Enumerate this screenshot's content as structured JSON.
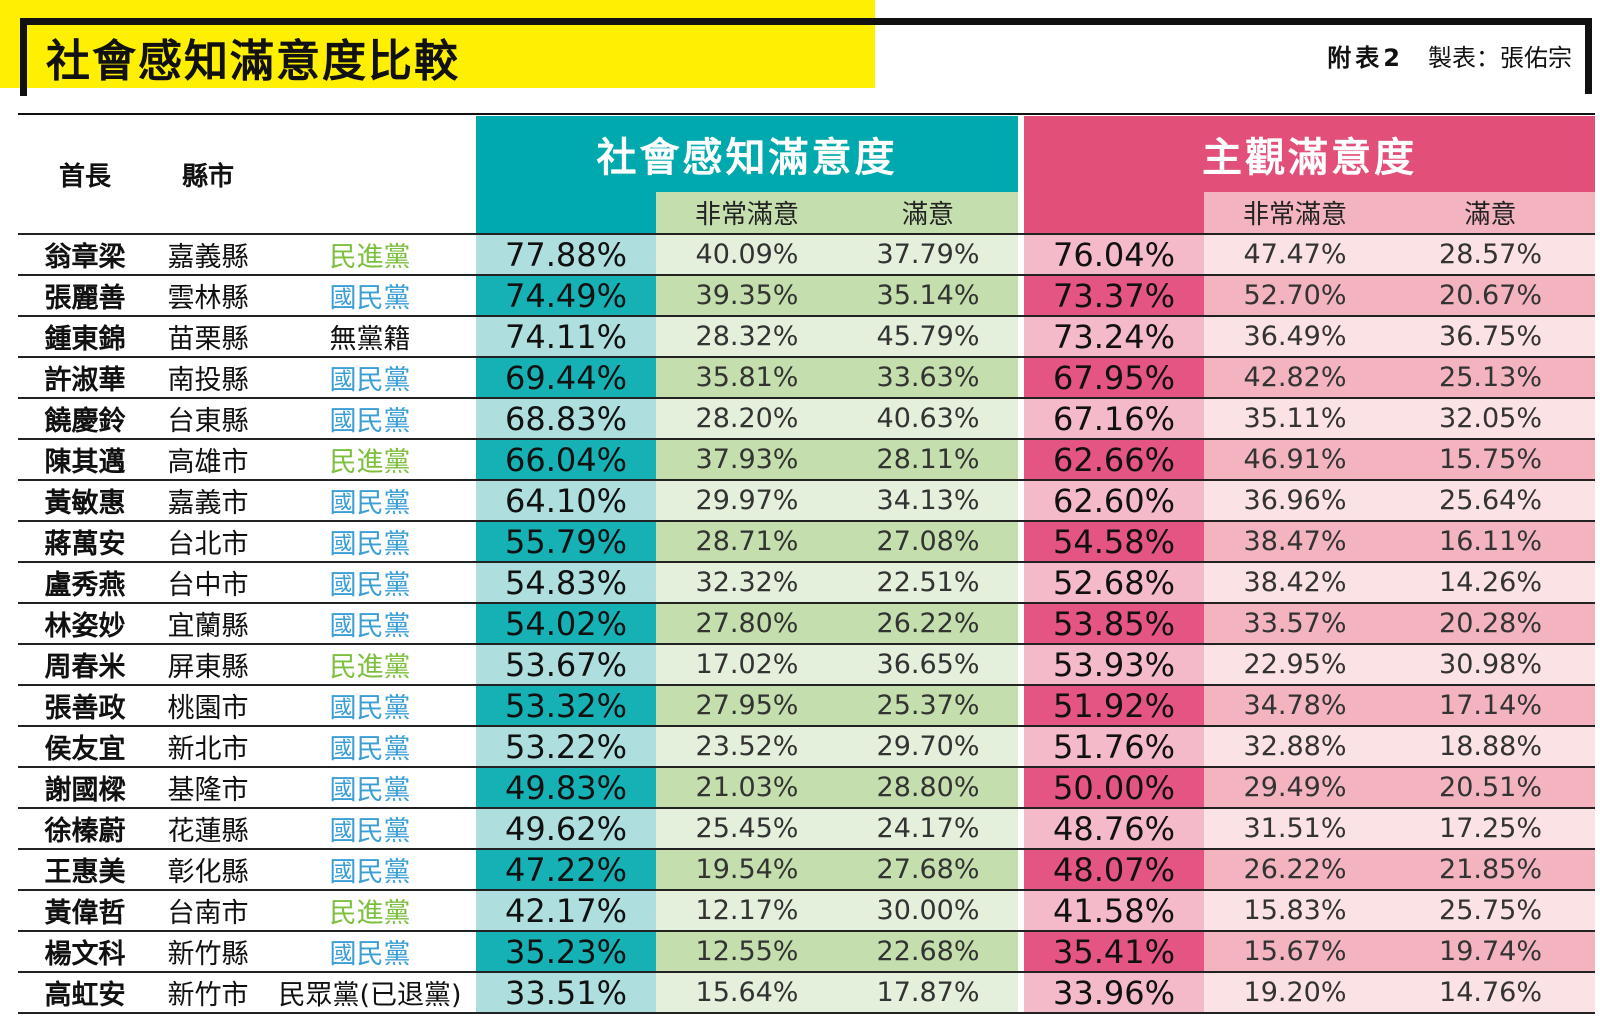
{
  "header": {
    "title": "社會感知滿意度比較",
    "figure_label": "附表2",
    "credit": "製表：張佑宗"
  },
  "columns": {
    "leader": "首長",
    "county": "縣市",
    "social_group": "社會感知滿意度",
    "subjective_group": "主觀滿意度",
    "very_satisfied": "非常滿意",
    "satisfied": "滿意"
  },
  "colors": {
    "yellow": "#ffef00",
    "teal": "#00a9ad",
    "pink": "#e2507a",
    "dpp_green": "#7dbf3e",
    "kmt_blue": "#3b9fd6"
  },
  "rows": [
    {
      "name": "翁章梁",
      "county": "嘉義縣",
      "party": "民進黨",
      "party_type": "dpp",
      "social_total": "77.88%",
      "social_very": "40.09%",
      "social_sat": "37.79%",
      "subj_total": "76.04%",
      "subj_very": "47.47%",
      "subj_sat": "28.57%"
    },
    {
      "name": "張麗善",
      "county": "雲林縣",
      "party": "國民黨",
      "party_type": "kmt",
      "social_total": "74.49%",
      "social_very": "39.35%",
      "social_sat": "35.14%",
      "subj_total": "73.37%",
      "subj_very": "52.70%",
      "subj_sat": "20.67%"
    },
    {
      "name": "鍾東錦",
      "county": "苗栗縣",
      "party": "無黨籍",
      "party_type": "ind",
      "social_total": "74.11%",
      "social_very": "28.32%",
      "social_sat": "45.79%",
      "subj_total": "73.24%",
      "subj_very": "36.49%",
      "subj_sat": "36.75%"
    },
    {
      "name": "許淑華",
      "county": "南投縣",
      "party": "國民黨",
      "party_type": "kmt",
      "social_total": "69.44%",
      "social_very": "35.81%",
      "social_sat": "33.63%",
      "subj_total": "67.95%",
      "subj_very": "42.82%",
      "subj_sat": "25.13%"
    },
    {
      "name": "饒慶鈴",
      "county": "台東縣",
      "party": "國民黨",
      "party_type": "kmt",
      "social_total": "68.83%",
      "social_very": "28.20%",
      "social_sat": "40.63%",
      "subj_total": "67.16%",
      "subj_very": "35.11%",
      "subj_sat": "32.05%"
    },
    {
      "name": "陳其邁",
      "county": "高雄市",
      "party": "民進黨",
      "party_type": "dpp",
      "social_total": "66.04%",
      "social_very": "37.93%",
      "social_sat": "28.11%",
      "subj_total": "62.66%",
      "subj_very": "46.91%",
      "subj_sat": "15.75%"
    },
    {
      "name": "黃敏惠",
      "county": "嘉義市",
      "party": "國民黨",
      "party_type": "kmt",
      "social_total": "64.10%",
      "social_very": "29.97%",
      "social_sat": "34.13%",
      "subj_total": "62.60%",
      "subj_very": "36.96%",
      "subj_sat": "25.64%"
    },
    {
      "name": "蔣萬安",
      "county": "台北市",
      "party": "國民黨",
      "party_type": "kmt",
      "social_total": "55.79%",
      "social_very": "28.71%",
      "social_sat": "27.08%",
      "subj_total": "54.58%",
      "subj_very": "38.47%",
      "subj_sat": "16.11%"
    },
    {
      "name": "盧秀燕",
      "county": "台中市",
      "party": "國民黨",
      "party_type": "kmt",
      "social_total": "54.83%",
      "social_very": "32.32%",
      "social_sat": "22.51%",
      "subj_total": "52.68%",
      "subj_very": "38.42%",
      "subj_sat": "14.26%"
    },
    {
      "name": "林姿妙",
      "county": "宜蘭縣",
      "party": "國民黨",
      "party_type": "kmt",
      "social_total": "54.02%",
      "social_very": "27.80%",
      "social_sat": "26.22%",
      "subj_total": "53.85%",
      "subj_very": "33.57%",
      "subj_sat": "20.28%"
    },
    {
      "name": "周春米",
      "county": "屏東縣",
      "party": "民進黨",
      "party_type": "dpp",
      "social_total": "53.67%",
      "social_very": "17.02%",
      "social_sat": "36.65%",
      "subj_total": "53.93%",
      "subj_very": "22.95%",
      "subj_sat": "30.98%"
    },
    {
      "name": "張善政",
      "county": "桃園市",
      "party": "國民黨",
      "party_type": "kmt",
      "social_total": "53.32%",
      "social_very": "27.95%",
      "social_sat": "25.37%",
      "subj_total": "51.92%",
      "subj_very": "34.78%",
      "subj_sat": "17.14%"
    },
    {
      "name": "侯友宜",
      "county": "新北市",
      "party": "國民黨",
      "party_type": "kmt",
      "social_total": "53.22%",
      "social_very": "23.52%",
      "social_sat": "29.70%",
      "subj_total": "51.76%",
      "subj_very": "32.88%",
      "subj_sat": "18.88%"
    },
    {
      "name": "謝國樑",
      "county": "基隆市",
      "party": "國民黨",
      "party_type": "kmt",
      "social_total": "49.83%",
      "social_very": "21.03%",
      "social_sat": "28.80%",
      "subj_total": "50.00%",
      "subj_very": "29.49%",
      "subj_sat": "20.51%"
    },
    {
      "name": "徐榛蔚",
      "county": "花蓮縣",
      "party": "國民黨",
      "party_type": "kmt",
      "social_total": "49.62%",
      "social_very": "25.45%",
      "social_sat": "24.17%",
      "subj_total": "48.76%",
      "subj_very": "31.51%",
      "subj_sat": "17.25%"
    },
    {
      "name": "王惠美",
      "county": "彰化縣",
      "party": "國民黨",
      "party_type": "kmt",
      "social_total": "47.22%",
      "social_very": "19.54%",
      "social_sat": "27.68%",
      "subj_total": "48.07%",
      "subj_very": "26.22%",
      "subj_sat": "21.85%"
    },
    {
      "name": "黃偉哲",
      "county": "台南市",
      "party": "民進黨",
      "party_type": "dpp",
      "social_total": "42.17%",
      "social_very": "12.17%",
      "social_sat": "30.00%",
      "subj_total": "41.58%",
      "subj_very": "15.83%",
      "subj_sat": "25.75%"
    },
    {
      "name": "楊文科",
      "county": "新竹縣",
      "party": "國民黨",
      "party_type": "kmt",
      "social_total": "35.23%",
      "social_very": "12.55%",
      "social_sat": "22.68%",
      "subj_total": "35.41%",
      "subj_very": "15.67%",
      "subj_sat": "19.74%"
    },
    {
      "name": "高虹安",
      "county": "新竹市",
      "party": "民眾黨(已退黨)",
      "party_type": "ind",
      "social_total": "33.51%",
      "social_very": "15.64%",
      "social_sat": "17.87%",
      "subj_total": "33.96%",
      "subj_very": "19.20%",
      "subj_sat": "14.76%"
    }
  ]
}
